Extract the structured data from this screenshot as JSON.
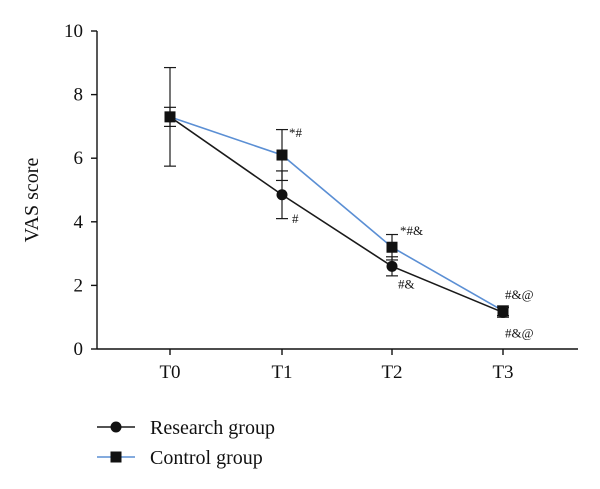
{
  "chart_data": {
    "type": "line",
    "title": "",
    "xlabel": "",
    "ylabel": "VAS score",
    "categories": [
      "T0",
      "T1",
      "T2",
      "T3"
    ],
    "ylim": [
      0,
      10
    ],
    "yticks": [
      0,
      2,
      4,
      6,
      8,
      10
    ],
    "grid": false,
    "legend_position": "bottom-left",
    "series": [
      {
        "name": "Research group",
        "marker": "circle",
        "color": "#1a1a1a",
        "values": [
          7.3,
          4.85,
          2.6,
          1.15
        ],
        "error": [
          1.55,
          0.75,
          0.3,
          0.15
        ],
        "annotations": [
          "",
          "#",
          "#&",
          "#&@"
        ]
      },
      {
        "name": "Control group",
        "marker": "square",
        "color": "#5b8fd4",
        "values": [
          7.3,
          6.1,
          3.2,
          1.2
        ],
        "error": [
          0.3,
          0.8,
          0.4,
          0.15
        ],
        "annotations": [
          "",
          "*#",
          "*#&",
          "#&@"
        ]
      }
    ]
  }
}
